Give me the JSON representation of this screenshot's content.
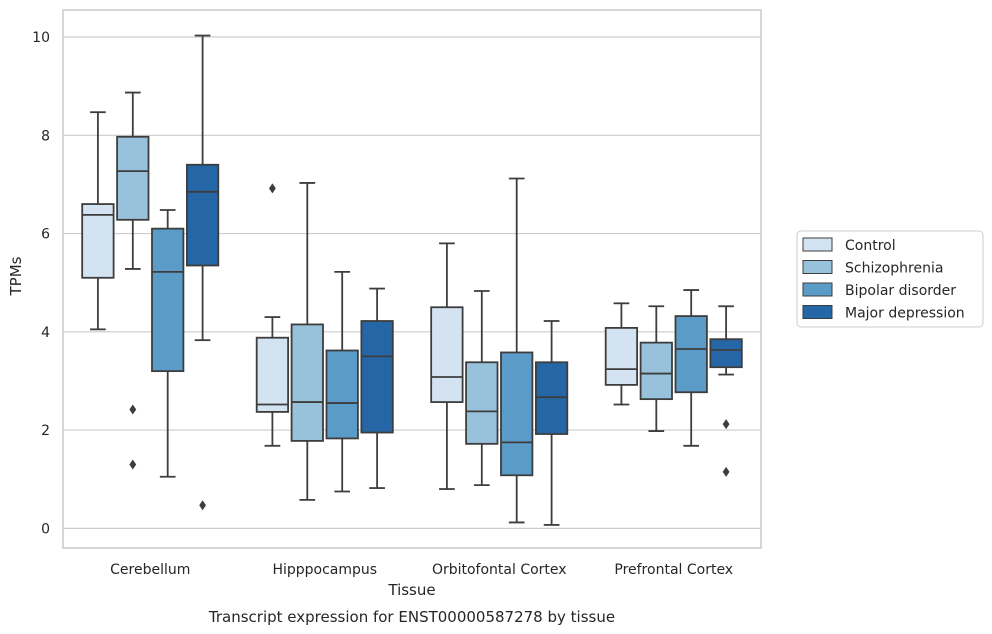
{
  "caption": "Transcript expression for ENST00000587278 by tissue",
  "chart_data": {
    "type": "box",
    "xlabel": "Tissue",
    "ylabel": "TPMs",
    "ylim": [
      -0.4,
      10.55
    ],
    "yticks": [
      0,
      2,
      4,
      6,
      8,
      10
    ],
    "grid": "horizontal",
    "legend_position": "right",
    "categories": [
      "Cerebellum",
      "Hipppocampus",
      "Orbitofontal Cortex",
      "Prefrontal Cortex"
    ],
    "series": [
      {
        "name": "Control",
        "color": "#d4e3f2",
        "boxes": [
          {
            "whislo": 4.05,
            "q1": 5.1,
            "med": 6.38,
            "q3": 6.6,
            "whishi": 8.47,
            "fliers": []
          },
          {
            "whislo": 1.68,
            "q1": 2.37,
            "med": 2.52,
            "q3": 3.88,
            "whishi": 4.3,
            "fliers": [
              6.92
            ]
          },
          {
            "whislo": 0.8,
            "q1": 2.57,
            "med": 3.08,
            "q3": 4.5,
            "whishi": 5.8,
            "fliers": []
          },
          {
            "whislo": 2.52,
            "q1": 2.92,
            "med": 3.24,
            "q3": 4.08,
            "whishi": 4.58,
            "fliers": []
          }
        ]
      },
      {
        "name": "Schizophrenia",
        "color": "#98c1dc",
        "boxes": [
          {
            "whislo": 5.28,
            "q1": 6.28,
            "med": 7.27,
            "q3": 7.97,
            "whishi": 8.87,
            "fliers": [
              2.42,
              1.3
            ]
          },
          {
            "whislo": 0.58,
            "q1": 1.78,
            "med": 2.57,
            "q3": 4.15,
            "whishi": 7.03,
            "fliers": []
          },
          {
            "whislo": 0.88,
            "q1": 1.72,
            "med": 2.38,
            "q3": 3.38,
            "whishi": 4.83,
            "fliers": []
          },
          {
            "whislo": 1.98,
            "q1": 2.63,
            "med": 3.15,
            "q3": 3.78,
            "whishi": 4.52,
            "fliers": []
          }
        ]
      },
      {
        "name": "Bipolar disorder",
        "color": "#5a9bc8",
        "boxes": [
          {
            "whislo": 1.05,
            "q1": 3.2,
            "med": 5.22,
            "q3": 6.1,
            "whishi": 6.48,
            "fliers": []
          },
          {
            "whislo": 0.75,
            "q1": 1.83,
            "med": 2.55,
            "q3": 3.62,
            "whishi": 5.22,
            "fliers": []
          },
          {
            "whislo": 0.12,
            "q1": 1.08,
            "med": 1.75,
            "q3": 3.58,
            "whishi": 7.12,
            "fliers": []
          },
          {
            "whislo": 1.68,
            "q1": 2.77,
            "med": 3.65,
            "q3": 4.32,
            "whishi": 4.85,
            "fliers": []
          }
        ]
      },
      {
        "name": "Major depression",
        "color": "#2567a6",
        "boxes": [
          {
            "whislo": 3.83,
            "q1": 5.35,
            "med": 6.85,
            "q3": 7.4,
            "whishi": 10.03,
            "fliers": [
              0.47
            ]
          },
          {
            "whislo": 0.82,
            "q1": 1.95,
            "med": 3.5,
            "q3": 4.22,
            "whishi": 4.88,
            "fliers": []
          },
          {
            "whislo": 0.07,
            "q1": 1.92,
            "med": 2.67,
            "q3": 3.38,
            "whishi": 4.22,
            "fliers": []
          },
          {
            "whislo": 3.13,
            "q1": 3.28,
            "med": 3.63,
            "q3": 3.85,
            "whishi": 4.52,
            "fliers": [
              2.12,
              1.15
            ]
          }
        ]
      }
    ]
  }
}
